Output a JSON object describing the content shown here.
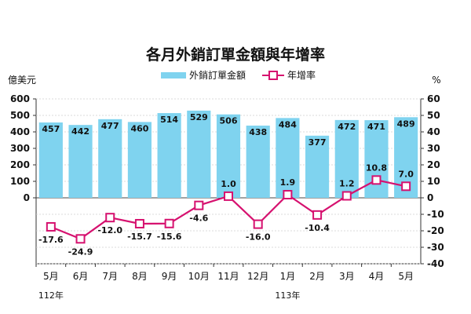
{
  "chart_data": {
    "type": "bar+line",
    "title": "各月外銷訂單金額與年增率",
    "y_left_label": "億美元",
    "y_right_label": "%",
    "y_left_range": [
      -400,
      600
    ],
    "y_right_range": [
      -40,
      60
    ],
    "y_left_ticks": [
      "600",
      "500",
      "400",
      "300",
      "200",
      "100",
      "0"
    ],
    "y_right_ticks": [
      "60",
      "50",
      "40",
      "30",
      "20",
      "10",
      "0",
      "-10",
      "-20",
      "-30",
      "-40"
    ],
    "categories": [
      "5月",
      "6月",
      "7月",
      "8月",
      "9月",
      "10月",
      "11月",
      "12月",
      "1月",
      "2月",
      "3月",
      "4月",
      "5月"
    ],
    "year_labels": [
      {
        "label": "112年",
        "category_index": 0
      },
      {
        "label": "113年",
        "category_index": 8
      }
    ],
    "series": [
      {
        "name": "外銷訂單金額",
        "type": "bar",
        "axis": "left",
        "color": "#7fd3ef",
        "values": [
          457,
          442,
          477,
          460,
          514,
          529,
          506,
          438,
          484,
          377,
          472,
          471,
          489
        ],
        "labels": [
          "457",
          "442",
          "477",
          "460",
          "514",
          "529",
          "506",
          "438",
          "484",
          "377",
          "472",
          "471",
          "489"
        ]
      },
      {
        "name": "年增率",
        "type": "line",
        "axis": "right",
        "color": "#d6116f",
        "values": [
          -17.6,
          -24.9,
          -12.0,
          -15.7,
          -15.6,
          -4.6,
          1.0,
          -16.0,
          1.9,
          -10.4,
          1.2,
          10.8,
          7.0
        ],
        "labels": [
          "-17.6",
          "-24.9",
          "-12.0",
          "-15.7",
          "-15.6",
          "-4.6",
          "1.0",
          "-16.0",
          "1.9",
          "-10.4",
          "1.2",
          "10.8",
          "7.0"
        ]
      }
    ]
  }
}
